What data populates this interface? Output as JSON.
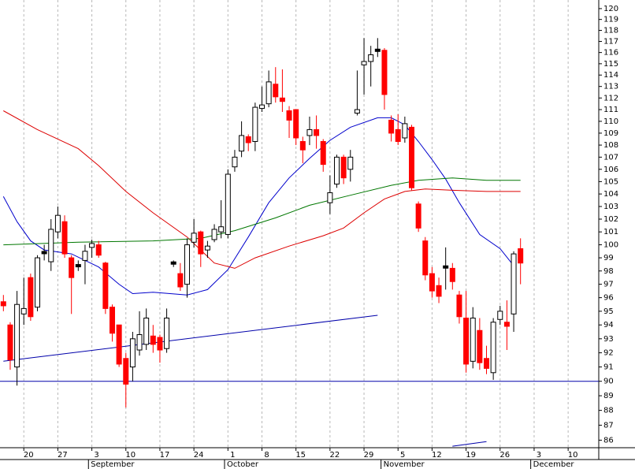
{
  "chart_data": {
    "type": "candlestick",
    "log": true,
    "grid": "x",
    "colors": {
      "up": "#ffffff",
      "down": "#ff0000",
      "flat": "#000000",
      "outline": "#000000"
    },
    "x": [
      "Aug 15",
      "Aug 16",
      "Aug 17",
      "Aug 20",
      "Aug 21",
      "Aug 22",
      "Aug 23",
      "Aug 24",
      "Aug 27",
      "Aug 28",
      "Aug 29",
      "Aug 30",
      "Aug 31",
      "Sep 3",
      "Sep 4",
      "Sep 5",
      "Sep 6",
      "Sep 7",
      "Sep 10",
      "Sep 11",
      "Sep 12",
      "Sep 13",
      "Sep 14",
      "Sep 17",
      "Sep 18",
      "Sep 19",
      "Sep 20",
      "Sep 21",
      "Sep 24",
      "Sep 25",
      "Sep 26",
      "Sep 27",
      "Sep 28",
      "Oct 1",
      "Oct 2",
      "Oct 3",
      "Oct 4",
      "Oct 5",
      "Oct 8",
      "Oct 9",
      "Oct 10",
      "Oct 11",
      "Oct 12",
      "Oct 15",
      "Oct 16",
      "Oct 17",
      "Oct 18",
      "Oct 19",
      "Oct 22",
      "Oct 23",
      "Oct 24",
      "Oct 25",
      "Oct 26",
      "Oct 29",
      "Oct 30",
      "Oct 31",
      "Nov 1",
      "Nov 2",
      "Nov 5",
      "Nov 6",
      "Nov 7",
      "Nov 8",
      "Nov 9",
      "Nov 12",
      "Nov 13",
      "Nov 14",
      "Nov 15",
      "Nov 16",
      "Nov 19",
      "Nov 20",
      "Nov 21",
      "Nov 22",
      "Nov 23",
      "Nov 26",
      "Nov 27",
      "Nov 28",
      "Nov 29",
      "Nov 30",
      "Dec 3",
      "Dec 4",
      "Dec 5",
      "Dec 6",
      "Dec 7",
      "Dec 10",
      "Dec 11",
      "Dec 12",
      "Dec 13",
      "Dec 14"
    ],
    "open": [
      95.7,
      94.0,
      91.0,
      94.8,
      97.5,
      95.3,
      99.4,
      98.7,
      101.0,
      101.8,
      99.0,
      98.4,
      98.8,
      99.8,
      100.0,
      98.6,
      95.3,
      94.0,
      91.6,
      91.0,
      92.2,
      92.6,
      93.2,
      93.1,
      92.3,
      98.6,
      97.8,
      97.0,
      100.2,
      101.0,
      99.6,
      100.4,
      101.0,
      100.8,
      106.2,
      107.5,
      108.7,
      108.3,
      111.1,
      111.5,
      113.2,
      112.0,
      110.9,
      111.0,
      108.3,
      108.8,
      109.3,
      108.3,
      103.3,
      104.8,
      107.0,
      106.0,
      110.7,
      114.9,
      115.2,
      116.2,
      116.2,
      110.1,
      109.3,
      108.6,
      109.5,
      103.2,
      100.3,
      97.8,
      96.9,
      98.3,
      98.2,
      96.2,
      94.5,
      91.4,
      93.6,
      91.6,
      90.6,
      94.4,
      94.2,
      94.8,
      99.7,
      null,
      null,
      null,
      null,
      null,
      null,
      null,
      null,
      null,
      null,
      null
    ],
    "high": [
      96.2,
      94.2,
      96.5,
      97.5,
      97.8,
      99.2,
      100.0,
      102.0,
      103.0,
      102.3,
      99.2,
      98.8,
      100.0,
      100.4,
      100.3,
      98.7,
      95.5,
      94.0,
      92.0,
      93.5,
      95.0,
      95.2,
      94.0,
      93.3,
      95.2,
      98.8,
      98.6,
      100.5,
      102.0,
      101.1,
      100.3,
      101.6,
      103.5,
      106.0,
      107.6,
      110.0,
      108.9,
      111.6,
      113.0,
      114.4,
      114.7,
      114.5,
      111.3,
      111.0,
      108.7,
      110.4,
      110.5,
      108.5,
      105.5,
      107.2,
      107.2,
      107.6,
      114.4,
      117.3,
      116.6,
      117.3,
      116.4,
      110.5,
      110.6,
      110.4,
      109.7,
      103.4,
      100.6,
      98.3,
      97.5,
      99.8,
      98.6,
      96.5,
      96.5,
      95.3,
      94.5,
      92.5,
      94.5,
      95.4,
      95.8,
      99.5,
      100.5,
      null,
      null,
      null,
      null,
      null,
      null,
      null,
      null,
      null,
      null,
      null
    ],
    "low": [
      95.0,
      90.8,
      89.7,
      94.0,
      94.3,
      95.0,
      98.8,
      98.0,
      100.5,
      99.0,
      94.8,
      98.0,
      97.0,
      99.0,
      99.0,
      94.8,
      92.8,
      91.0,
      88.2,
      90.0,
      91.8,
      92.2,
      92.0,
      91.3,
      92.0,
      98.3,
      96.5,
      96.0,
      99.8,
      98.3,
      99.0,
      100.2,
      100.5,
      100.5,
      105.8,
      107.0,
      107.5,
      107.5,
      110.8,
      111.2,
      111.6,
      110.8,
      108.6,
      108.0,
      106.5,
      108.0,
      107.7,
      105.8,
      102.4,
      104.5,
      104.8,
      105.0,
      110.5,
      112.3,
      113.0,
      115.6,
      111.0,
      108.3,
      108.0,
      108.2,
      104.3,
      101.0,
      97.3,
      96.0,
      95.6,
      96.6,
      96.6,
      94.1,
      90.6,
      90.9,
      90.8,
      90.5,
      90.1,
      94.0,
      92.2,
      93.5,
      97.0,
      null,
      null,
      null,
      null,
      null,
      null,
      null,
      null,
      null,
      null,
      null
    ],
    "close": [
      95.4,
      91.5,
      95.5,
      95.2,
      94.6,
      99.0,
      99.4,
      101.2,
      102.3,
      99.3,
      97.5,
      98.4,
      99.5,
      100.1,
      99.2,
      95.2,
      93.4,
      91.2,
      89.8,
      93.0,
      93.3,
      94.5,
      92.6,
      92.2,
      94.5,
      98.6,
      96.8,
      100.0,
      100.9,
      99.3,
      99.9,
      101.2,
      101.4,
      105.6,
      107.0,
      108.8,
      108.2,
      111.2,
      111.4,
      113.4,
      112.1,
      111.7,
      110.1,
      108.6,
      107.6,
      109.3,
      108.8,
      106.4,
      104.1,
      107.0,
      105.3,
      107.0,
      111.0,
      115.2,
      115.8,
      116.2,
      112.3,
      109.0,
      108.3,
      109.8,
      104.5,
      101.3,
      97.7,
      96.5,
      96.1,
      98.3,
      97.2,
      94.6,
      91.2,
      94.5,
      91.3,
      90.9,
      94.2,
      95.0,
      93.9,
      99.3,
      98.6,
      null,
      null,
      null,
      null,
      null,
      null,
      null,
      null,
      null,
      null,
      null
    ],
    "overlays": [
      {
        "color": "#0000cc",
        "x": [
          "Aug 15",
          "Aug 17",
          "Aug 21",
          "Aug 23",
          "Aug 29",
          "Sep 4",
          "Sep 7",
          "Sep 11",
          "Sep 14",
          "Sep 21",
          "Sep 26",
          "Oct 1",
          "Oct 4",
          "Oct 9",
          "Oct 12",
          "Oct 17",
          "Oct 22",
          "Oct 25",
          "Oct 31",
          "Nov 2",
          "Nov 6",
          "Nov 8",
          "Nov 12",
          "Nov 14",
          "Nov 16",
          "Nov 21",
          "Nov 26",
          "Nov 28"
        ],
        "values": [
          103.8,
          101.8,
          100.3,
          99.6,
          99.3,
          98.3,
          97.0,
          96.3,
          96.4,
          96.2,
          96.6,
          98.1,
          100.6,
          103.3,
          105.3,
          106.9,
          108.4,
          109.5,
          110.3,
          110.3,
          109.7,
          108.3,
          106.8,
          105.2,
          103.3,
          100.8,
          99.7,
          98.4
        ]
      },
      {
        "color": "#dd0000",
        "x": [
          "Aug 15",
          "Aug 22",
          "Aug 30",
          "Sep 4",
          "Sep 10",
          "Sep 14",
          "Sep 21",
          "Sep 27",
          "Oct 2",
          "Oct 5",
          "Oct 12",
          "Oct 19",
          "Oct 24",
          "Oct 29",
          "Nov 1",
          "Nov 6",
          "Nov 9",
          "Nov 15",
          "Nov 22",
          "Nov 29"
        ],
        "values": [
          110.9,
          109.3,
          107.7,
          106.3,
          104.2,
          102.5,
          100.6,
          98.6,
          98.2,
          99.0,
          99.9,
          100.7,
          101.3,
          102.5,
          103.6,
          104.2,
          104.4,
          104.3,
          104.2,
          104.2
        ]
      },
      {
        "color": "#007700",
        "x": [
          "Aug 15",
          "Aug 30",
          "Sep 14",
          "Sep 25",
          "Oct 2",
          "Oct 10",
          "Oct 17",
          "Oct 25",
          "Nov 2",
          "Nov 8",
          "Nov 15",
          "Nov 22",
          "Nov 29"
        ],
        "values": [
          100.0,
          100.2,
          100.3,
          100.5,
          101.1,
          102.1,
          103.1,
          103.9,
          104.7,
          105.1,
          105.3,
          105.1,
          105.1
        ]
      },
      {
        "color": "#0000aa",
        "x": [
          "Aug 15",
          "Oct 31"
        ],
        "values": [
          91.4,
          94.7
        ]
      },
      {
        "color": "#0000aa",
        "x": [
          "Nov 15",
          "Nov 22"
        ],
        "values": [
          85.6,
          85.9
        ]
      }
    ],
    "hlines": [
      {
        "value": 90,
        "color": "#0000aa"
      }
    ],
    "ylim": [
      85.5,
      120.8
    ],
    "yticks": [
      86,
      87,
      88,
      89,
      90,
      91,
      92,
      93,
      94,
      95,
      96,
      97,
      98,
      99,
      100,
      101,
      102,
      103,
      104,
      105,
      106,
      107,
      108,
      109,
      110,
      111,
      112,
      113,
      114,
      115,
      116,
      117,
      118,
      119,
      120
    ],
    "xticks": [
      {
        "value": "Aug 20",
        "label": "20"
      },
      {
        "value": "Aug 27",
        "label": "27"
      },
      {
        "value": "Sep 3",
        "label": "3"
      },
      {
        "value": "Sep 10",
        "label": "10"
      },
      {
        "value": "Sep 17",
        "label": "17"
      },
      {
        "value": "Sep 24",
        "label": "24"
      },
      {
        "value": "Oct 1",
        "label": "1"
      },
      {
        "value": "Oct 8",
        "label": "8"
      },
      {
        "value": "Oct 15",
        "label": "15"
      },
      {
        "value": "Oct 22",
        "label": "22"
      },
      {
        "value": "Oct 29",
        "label": "29"
      },
      {
        "value": "Nov 5",
        "label": "5"
      },
      {
        "value": "Nov 12",
        "label": "12"
      },
      {
        "value": "Nov 19",
        "label": "19"
      },
      {
        "value": "Nov 26",
        "label": "26"
      },
      {
        "value": "Dec 3",
        "label": "3"
      },
      {
        "value": "Dec 10",
        "label": "10"
      }
    ],
    "month_ticks": [
      {
        "value": "Sep 3",
        "label": "September"
      },
      {
        "value": "Oct 1",
        "label": "October"
      },
      {
        "value": "Nov 1",
        "label": "November"
      },
      {
        "value": "Dec 3",
        "label": "December"
      }
    ]
  }
}
